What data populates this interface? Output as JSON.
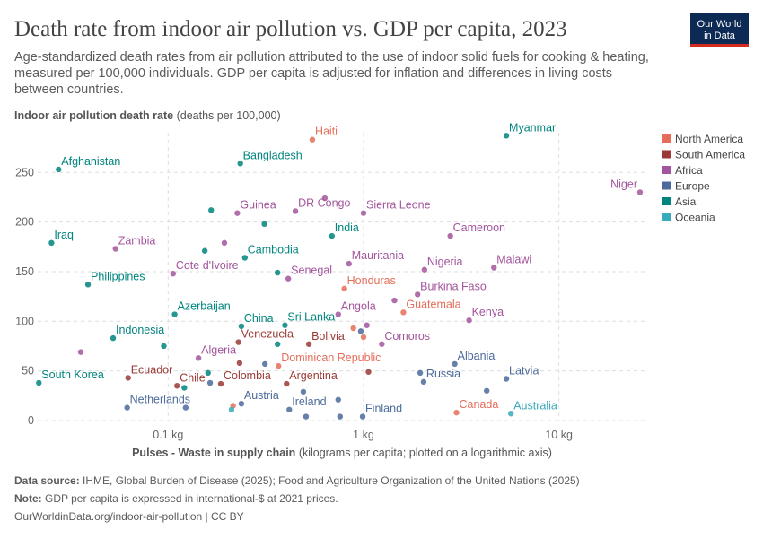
{
  "chart_data": {
    "type": "scatter",
    "title": "Death rate from indoor air pollution vs. GDP per capita, 2023",
    "subtitle_lines": [
      "Age-standardized death rates from air pollution attributed to the use of indoor solid fuels for cooking & heating,",
      "measured per 100,000 individuals. GDP per capita is adjusted for inflation and differences in living costs",
      "between countries."
    ],
    "y_label": "Indoor air pollution death rate",
    "y_label_unit": "(deaths per 100,000)",
    "x_label": "Pulses - Waste in supply chain",
    "x_label_unit": "(kilograms per capita; plotted on a logarithmic axis)",
    "x_log": true,
    "grid": true,
    "legend_position": "right",
    "xlim": [
      0.0215,
      28
    ],
    "ylim": [
      0,
      290
    ],
    "xticks": [
      {
        "value": 0.1,
        "label": "0.1 kg"
      },
      {
        "value": 1,
        "label": "1 kg"
      },
      {
        "value": 10,
        "label": "10 kg"
      }
    ],
    "yticks": [
      0,
      50,
      100,
      150,
      200,
      250
    ],
    "series": [
      {
        "name": "North America",
        "color": "#e56e5a",
        "x": [
          0.547,
          0.798,
          1.6,
          0.367,
          2.99,
          0.887,
          1.0,
          0.215
        ],
        "y": [
          283,
          133,
          109,
          55,
          8,
          93,
          84,
          15
        ],
        "labels": [
          "Haiti",
          "Honduras",
          "Guatemala",
          "Dominican Republic",
          "Canada",
          null,
          null,
          null
        ]
      },
      {
        "name": "South America",
        "color": "#9a3a36",
        "x": [
          0.229,
          0.525,
          0.0624,
          0.111,
          0.186,
          0.404,
          1.06,
          0.232
        ],
        "y": [
          79,
          77,
          43,
          35,
          37,
          37,
          49,
          58
        ],
        "labels": [
          "Venezuela",
          "Bolivia",
          "Ecuador",
          "Chile",
          "Colombia",
          "Argentina",
          null,
          null
        ]
      },
      {
        "name": "Africa",
        "color": "#a2559c",
        "x": [
          26.0,
          0.0538,
          0.226,
          0.448,
          1.0,
          2.78,
          4.65,
          2.05,
          0.842,
          0.106,
          0.412,
          1.89,
          0.742,
          3.47,
          1.24,
          0.143,
          0.0357,
          0.194,
          0.634,
          1.04,
          1.44
        ],
        "y": [
          230,
          173,
          209,
          211,
          209,
          186,
          154,
          152,
          158,
          148,
          143,
          127,
          107,
          101,
          77,
          63,
          69,
          179,
          224,
          96,
          121
        ],
        "labels": [
          "Niger",
          "Zambia",
          "Guinea",
          "DR Congo",
          "Sierra Leone",
          "Cameroon",
          "Malawi",
          "Nigeria",
          "Mauritania",
          "Cote d'Ivoire",
          "Senegal",
          "Burkina Faso",
          "Angola",
          "Kenya",
          "Comoros",
          "Algeria",
          null,
          null,
          null,
          null,
          null
        ]
      },
      {
        "name": "Europe",
        "color": "#4c6a9c",
        "x": [
          2.93,
          2.03,
          5.38,
          0.0617,
          0.237,
          0.417,
          0.99,
          0.313,
          0.968,
          0.492,
          0.742,
          1.95,
          4.27,
          0.123,
          0.164,
          0.508,
          0.758
        ],
        "y": [
          57,
          39,
          42,
          13,
          17,
          11,
          4,
          57,
          90,
          29,
          21,
          48,
          30,
          13,
          38,
          4,
          4
        ],
        "labels": [
          "Albania",
          "Russia",
          "Latvia",
          "Netherlands",
          "Austria",
          "Ireland",
          "Finland",
          null,
          null,
          null,
          null,
          null,
          null,
          null,
          null,
          null,
          null
        ]
      },
      {
        "name": "Asia",
        "color": "#00847e",
        "x": [
          0.0275,
          5.38,
          0.234,
          0.0253,
          0.689,
          0.247,
          0.0389,
          0.108,
          0.237,
          0.396,
          0.0523,
          0.0218,
          0.166,
          0.311,
          0.154,
          0.363,
          0.095,
          0.16,
          0.121,
          0.363
        ],
        "y": [
          253,
          287,
          259,
          179,
          186,
          164,
          137,
          107,
          95,
          96,
          83,
          38,
          212,
          198,
          171,
          149,
          75,
          48,
          33,
          77
        ],
        "labels": [
          "Afghanistan",
          "Myanmar",
          "Bangladesh",
          "Iraq",
          "India",
          "Cambodia",
          "Philippines",
          "Azerbaijan",
          "China",
          "Sri Lanka",
          "Indonesia",
          "South Korea",
          null,
          null,
          null,
          null,
          null,
          null,
          null,
          null
        ]
      },
      {
        "name": "Oceania",
        "color": "#38aaba",
        "x": [
          5.68,
          0.211
        ],
        "y": [
          7,
          11
        ],
        "labels": [
          "Australia",
          null
        ]
      }
    ],
    "source_label": "Data source:",
    "source": "IHME, Global Burden of Disease (2025); Food and Agriculture Organization of the United Nations (2025)",
    "note_label": "Note:",
    "note": "GDP per capita is expressed in international-$ at 2021 prices.",
    "url": "OurWorldinData.org/indoor-air-pollution | CC BY",
    "logo": [
      "Our World",
      "in Data"
    ]
  }
}
